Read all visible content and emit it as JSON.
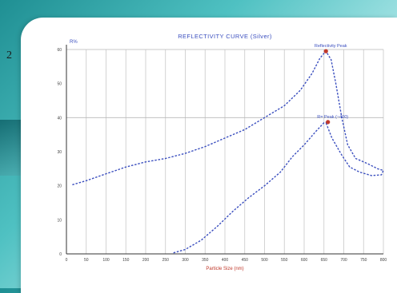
{
  "page": {
    "number": "2"
  },
  "chart_data": {
    "type": "line",
    "title": "REFLECTIVITY CURVE (Silver)",
    "xlabel": "Particle Size (nm)",
    "ylabel": "R%",
    "x_ticks": [
      0,
      50,
      100,
      150,
      200,
      250,
      300,
      350,
      400,
      450,
      500,
      550,
      600,
      650,
      700,
      750,
      800
    ],
    "y_ticks": [
      0,
      10,
      20,
      30,
      40,
      50,
      60
    ],
    "xlim": [
      0,
      800
    ],
    "ylim": [
      0,
      60
    ],
    "grid": {
      "vertical": true,
      "horizontal_major": [
        40,
        60
      ]
    },
    "colors": {
      "line": "#3b4fbf",
      "peak_marker": "#c0392b",
      "title": "#3b4fbf",
      "xlabel": "#c0392b"
    },
    "series": [
      {
        "points": [
          [
            15,
            20.3
          ],
          [
            50,
            21.5
          ],
          [
            100,
            23.5
          ],
          [
            150,
            25.5
          ],
          [
            200,
            27
          ],
          [
            250,
            28
          ],
          [
            300,
            29.5
          ],
          [
            350,
            31.5
          ],
          [
            400,
            34
          ],
          [
            450,
            36.5
          ],
          [
            500,
            40
          ],
          [
            550,
            43.5
          ],
          [
            590,
            48
          ],
          [
            620,
            53
          ],
          [
            640,
            57.5
          ],
          [
            655,
            59.5
          ],
          [
            668,
            57
          ],
          [
            680,
            50
          ],
          [
            695,
            40
          ],
          [
            710,
            32
          ],
          [
            730,
            28
          ],
          [
            760,
            26.5
          ],
          [
            785,
            25
          ],
          [
            800,
            24.5
          ],
          [
            795,
            23.2
          ],
          [
            770,
            23
          ],
          [
            740,
            24
          ],
          [
            715,
            25.5
          ],
          [
            695,
            29
          ],
          [
            670,
            34
          ],
          [
            655,
            38.5
          ]
        ]
      },
      {
        "points": [
          [
            270,
            0.3
          ],
          [
            300,
            1.3
          ],
          [
            340,
            4
          ],
          [
            380,
            8
          ],
          [
            420,
            12.5
          ],
          [
            460,
            16.5
          ],
          [
            500,
            20
          ],
          [
            540,
            24
          ],
          [
            570,
            28.5
          ],
          [
            600,
            32
          ],
          [
            630,
            36
          ],
          [
            650,
            38.5
          ],
          [
            660,
            38.7
          ]
        ]
      }
    ],
    "annotations": [
      {
        "text": "Reflectivity Peak",
        "x": 655,
        "y": 59.5
      },
      {
        "text": "R= Peak (~400)",
        "x": 660,
        "y": 38.7
      }
    ]
  }
}
